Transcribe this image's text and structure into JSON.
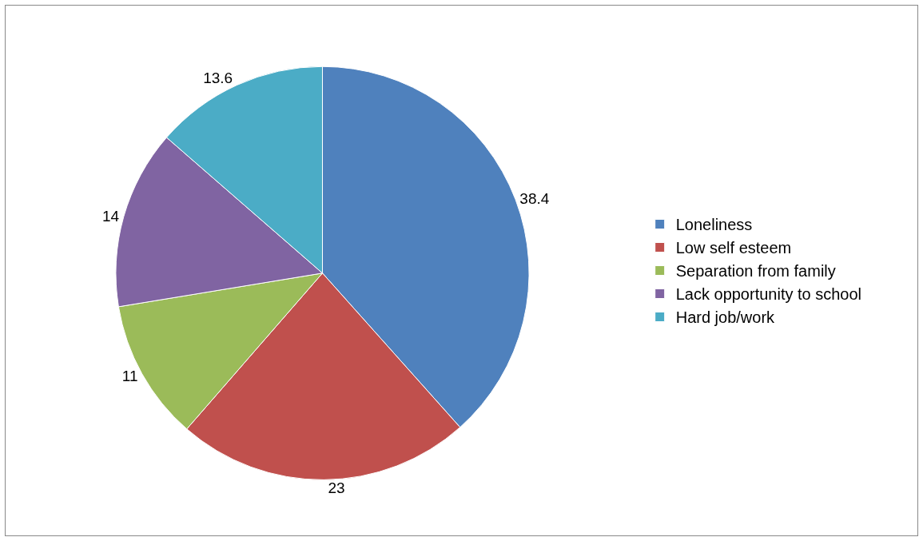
{
  "chart_data": {
    "type": "pie",
    "categories": [
      "Loneliness",
      "Low self esteem",
      "Separation from family",
      "Lack opportunity to school",
      "Hard job/work"
    ],
    "values": [
      38.4,
      23,
      11,
      14,
      13.6
    ],
    "colors": [
      "#4f81bd",
      "#c0504d",
      "#9bbb59",
      "#8064a2",
      "#4bacc6"
    ],
    "data_labels": true,
    "legend": "right"
  }
}
